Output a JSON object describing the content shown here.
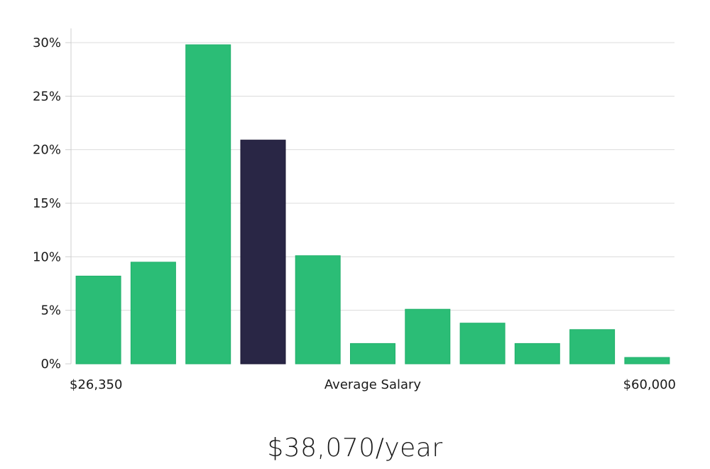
{
  "chart_data": {
    "type": "bar",
    "title": "",
    "xlabel": "Average Salary",
    "ylabel": "",
    "x_min_label": "$26,350",
    "x_max_label": "$60,000",
    "ylim": [
      0,
      30
    ],
    "yticks": [
      0,
      5,
      10,
      15,
      20,
      25,
      30
    ],
    "ytick_labels": [
      "0%",
      "5%",
      "10%",
      "15%",
      "20%",
      "25%",
      "30%"
    ],
    "grid": true,
    "values": [
      8.2,
      9.5,
      29.8,
      20.9,
      10.1,
      1.9,
      5.1,
      3.8,
      1.9,
      3.2,
      0.6
    ],
    "highlight_index": 3,
    "colors": {
      "bar": "#2bbd76",
      "highlight": "#292645",
      "grid": "#dcdcdc",
      "axis": "#cfcfcf"
    }
  },
  "summary": {
    "salary_text": "$38,070/year"
  }
}
